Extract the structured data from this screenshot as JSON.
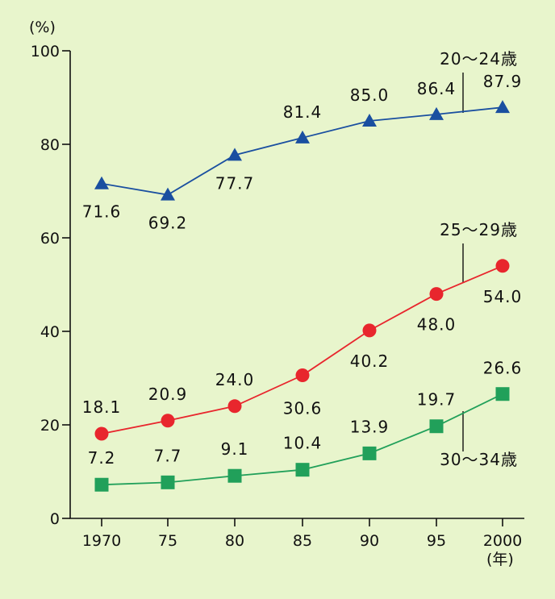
{
  "chart_data": {
    "type": "line",
    "y_unit": "(%)",
    "x_unit": "(年)",
    "categories": [
      "1970",
      "75",
      "80",
      "85",
      "90",
      "95",
      "2000"
    ],
    "ylim": [
      0,
      100
    ],
    "yticks": [
      0,
      20,
      40,
      60,
      80,
      100
    ],
    "grid": false,
    "series": [
      {
        "name": "20～24歳",
        "values": [
          71.6,
          69.2,
          77.7,
          81.4,
          85.0,
          86.4,
          87.9
        ],
        "labels": [
          "71.6",
          "69.2",
          "77.7",
          "81.4",
          "85.0",
          "86.4",
          "87.9"
        ],
        "color": "#1a4fa0",
        "marker": "triangle"
      },
      {
        "name": "25～29歳",
        "values": [
          18.1,
          20.9,
          24.0,
          30.6,
          40.2,
          48.0,
          54.0
        ],
        "labels": [
          "18.1",
          "20.9",
          "24.0",
          "30.6",
          "40.2",
          "48.0",
          "54.0"
        ],
        "color": "#e8262d",
        "marker": "circle"
      },
      {
        "name": "30～34歳",
        "values": [
          7.2,
          7.7,
          9.1,
          10.4,
          13.9,
          19.7,
          26.6
        ],
        "labels": [
          "7.2",
          "7.7",
          "9.1",
          "10.4",
          "13.9",
          "19.7",
          "26.6"
        ],
        "color": "#21a05a",
        "marker": "square"
      }
    ]
  }
}
